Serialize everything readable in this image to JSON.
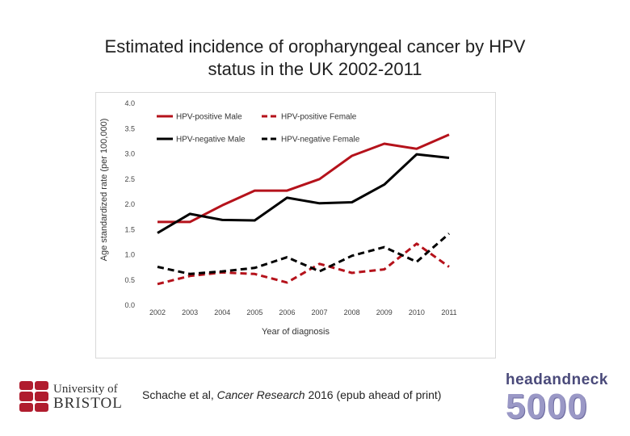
{
  "slide": {
    "title_line1": "Estimated incidence of oropharyngeal cancer by HPV",
    "title_line2": "status in the UK 2002-2011",
    "citation_authors": "Schache et al, ",
    "citation_journal": "Cancer Research",
    "citation_rest": "  2016 (epub ahead of print)",
    "logo_left_line1": "University of",
    "logo_left_line2": "BRISTOL",
    "logo_right_line1": "headandneck",
    "logo_right_line2": "5000"
  },
  "chart_data": {
    "type": "line",
    "title": "Estimated incidence of oropharyngeal cancer by HPV status in the UK 2002-2011",
    "xlabel": "Year of diagnosis",
    "ylabel": "Age standardized rate (per 100,000)",
    "categories": [
      "2002",
      "2003",
      "2004",
      "2005",
      "2006",
      "2007",
      "2008",
      "2009",
      "2010",
      "2011"
    ],
    "ylim": [
      0,
      4
    ],
    "yticks": [
      "0.0",
      "0.5",
      "1.0",
      "1.5",
      "2.0",
      "2.5",
      "3.0",
      "3.5",
      "4.0"
    ],
    "legend_position": "top",
    "series": [
      {
        "name": "HPV-positive Male",
        "color": "#b5121b",
        "dash": "solid",
        "values": [
          1.65,
          1.65,
          1.98,
          2.27,
          2.27,
          2.5,
          2.96,
          3.2,
          3.1,
          3.38
        ]
      },
      {
        "name": "HPV-positive Female",
        "color": "#b5121b",
        "dash": "dashed",
        "values": [
          0.42,
          0.58,
          0.65,
          0.62,
          0.45,
          0.82,
          0.64,
          0.71,
          1.22,
          0.76
        ]
      },
      {
        "name": "HPV-negative Male",
        "color": "#000000",
        "dash": "solid",
        "values": [
          1.43,
          1.81,
          1.69,
          1.68,
          2.13,
          2.02,
          2.04,
          2.39,
          2.99,
          2.92
        ]
      },
      {
        "name": "HPV-negative Female",
        "color": "#000000",
        "dash": "dashed",
        "values": [
          0.76,
          0.62,
          0.67,
          0.74,
          0.95,
          0.67,
          0.98,
          1.15,
          0.86,
          1.42
        ]
      }
    ]
  }
}
